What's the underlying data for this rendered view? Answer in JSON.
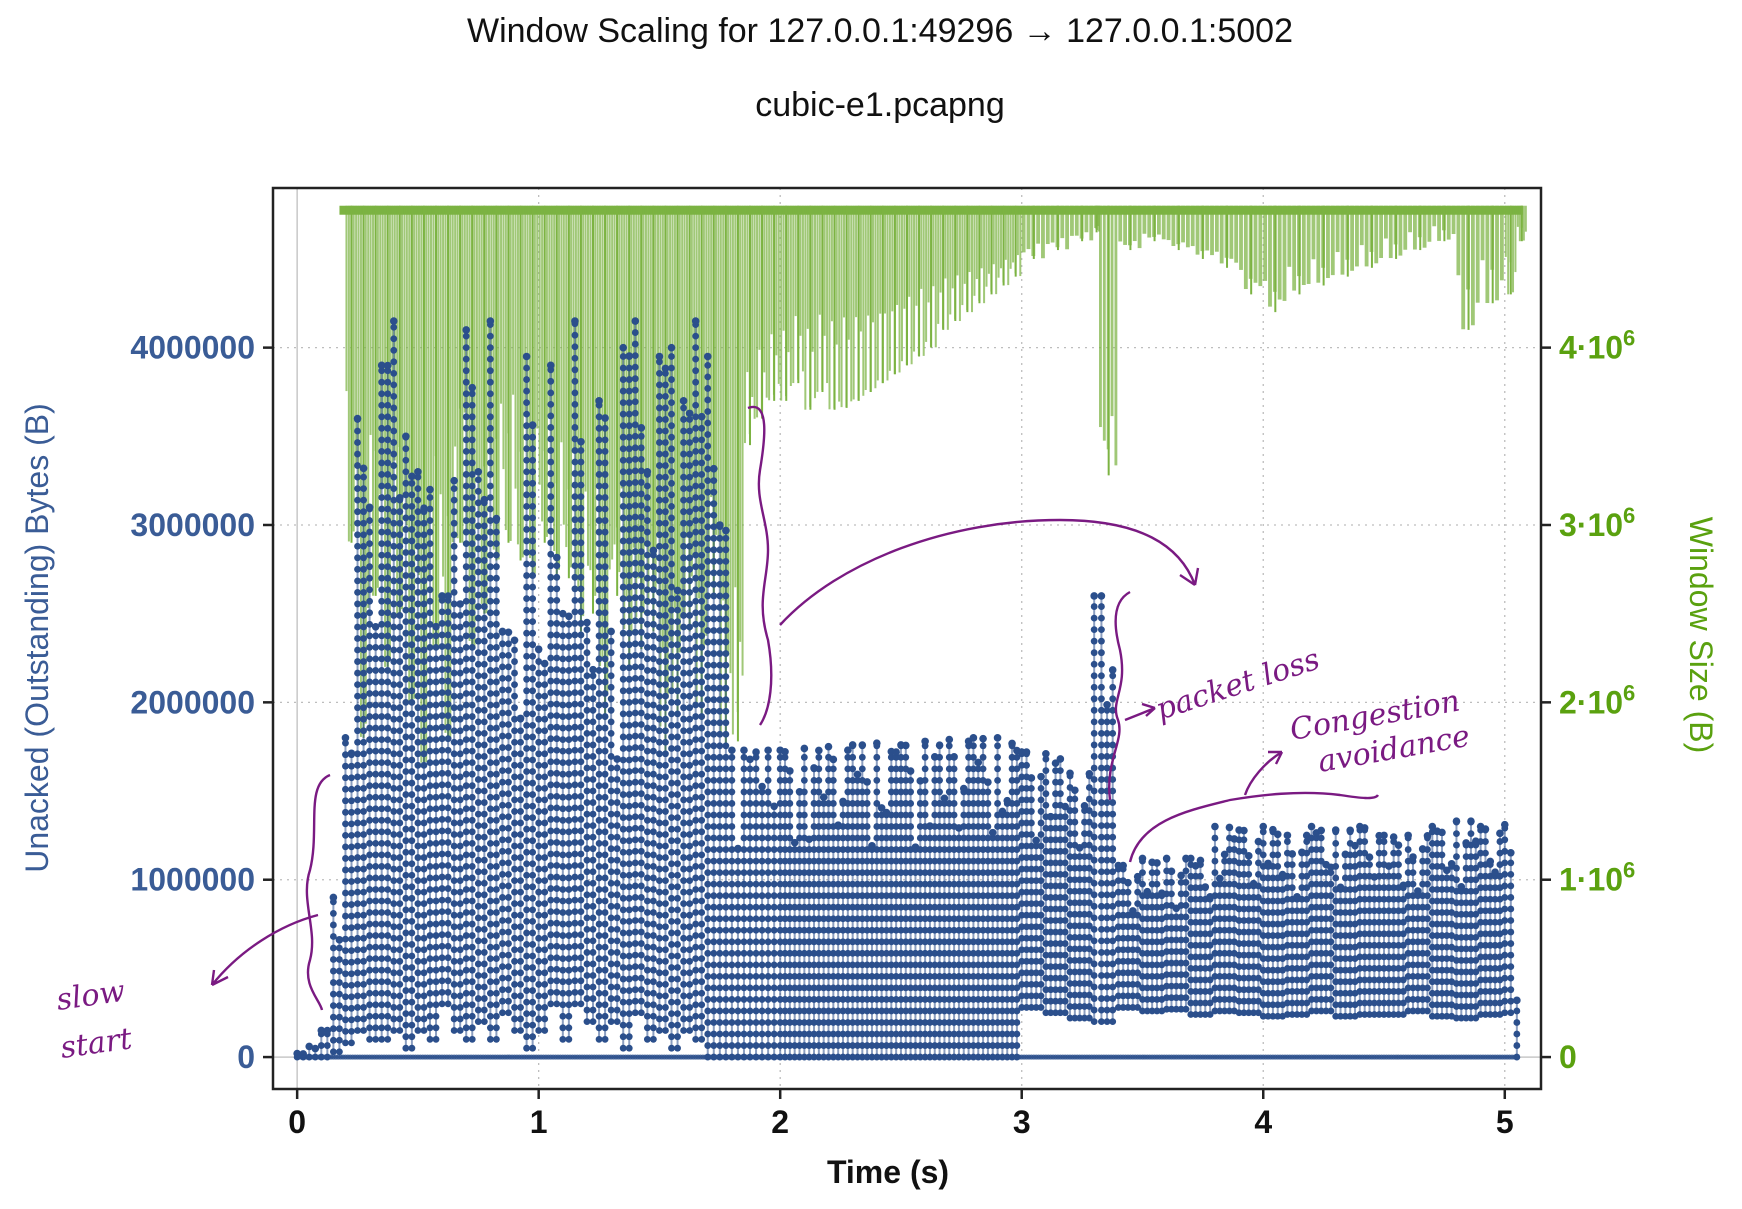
{
  "colors": {
    "unacked": "#2b4f8c",
    "window": "#7cb342",
    "annotation": "#7a1a82",
    "axis_left": "#3a5c96",
    "axis_right": "#5aa10f"
  },
  "chart_data": {
    "type": "scatter",
    "title": "Window Scaling for 127.0.0.1:49296 → 127.0.0.1:5002",
    "subtitle": "cubic-e1.pcapng",
    "xlabel": "Time (s)",
    "ylabel_left": "Unacked (Outstanding) Bytes (B)",
    "ylabel_right": "Window Size (B)",
    "xlim": [
      -0.1,
      5.15
    ],
    "ylim": [
      -180000,
      4900000
    ],
    "grid": true,
    "x_ticks": [
      "0",
      "1",
      "2",
      "3",
      "4",
      "5"
    ],
    "y_left_ticks": [
      "0",
      "1000000",
      "2000000",
      "3000000",
      "4000000"
    ],
    "y_right_ticks": [
      {
        "base": "0",
        "exp": ""
      },
      {
        "base": "1·10",
        "exp": "6"
      },
      {
        "base": "2·10",
        "exp": "6"
      },
      {
        "base": "3·10",
        "exp": "6"
      },
      {
        "base": "4·10",
        "exp": "6"
      }
    ],
    "series": [
      {
        "name": "Window Size (B)",
        "style": "bars",
        "axis": "right",
        "ceiling": 4800000,
        "x": [
          0.2,
          0.25,
          0.3,
          0.35,
          0.4,
          0.45,
          0.5,
          0.55,
          0.6,
          0.65,
          0.7,
          0.75,
          0.8,
          0.85,
          0.9,
          0.95,
          1.0,
          1.05,
          1.1,
          1.15,
          1.2,
          1.25,
          1.3,
          1.35,
          1.4,
          1.45,
          1.5,
          1.55,
          1.6,
          1.65,
          1.7,
          1.75,
          1.8,
          1.85,
          1.9,
          1.95,
          2.0,
          2.05,
          2.1,
          2.15,
          2.2,
          2.25,
          2.3,
          2.35,
          2.4,
          2.45,
          2.5,
          2.55,
          2.6,
          2.65,
          2.7,
          2.75,
          2.8,
          2.85,
          2.9,
          2.95,
          3.0,
          3.1,
          3.2,
          3.3,
          3.32,
          3.4,
          3.5,
          3.6,
          3.7,
          3.8,
          3.9,
          4.0,
          4.1,
          4.2,
          4.3,
          4.4,
          4.5,
          4.6,
          4.7,
          4.8,
          4.9,
          5.0,
          5.05
        ],
        "minimum": [
          2900000,
          1800000,
          2600000,
          2200000,
          2500000,
          2000000,
          1650000,
          2300000,
          1800000,
          2900000,
          2300000,
          2500000,
          2800000,
          2900000,
          2800000,
          2700000,
          2900000,
          2700000,
          2700000,
          2400000,
          2500000,
          1900000,
          2600000,
          2200000,
          2300000,
          2400000,
          1700000,
          1950000,
          2400000,
          1900000,
          2600000,
          1750000,
          1780000,
          3450000,
          3600000,
          3700000,
          3700000,
          3800000,
          3650000,
          3750000,
          3650000,
          3660000,
          3700000,
          3750000,
          3800000,
          3850000,
          3900000,
          3950000,
          4000000,
          4100000,
          4150000,
          4200000,
          4250000,
          4300000,
          4350000,
          4400000,
          4500000,
          4550000,
          4600000,
          4650000,
          3280000,
          4550000,
          4600000,
          4550000,
          4500000,
          4450000,
          4300000,
          4200000,
          4300000,
          4350000,
          4400000,
          4450000,
          4500000,
          4550000,
          4600000,
          4100000,
          4250000,
          4300000,
          4600000
        ]
      },
      {
        "name": "Unacked (Outstanding) Bytes (B)",
        "style": "dots",
        "axis": "left",
        "x": [
          0.0,
          0.05,
          0.1,
          0.15,
          0.2,
          0.25,
          0.3,
          0.35,
          0.4,
          0.45,
          0.5,
          0.55,
          0.6,
          0.65,
          0.7,
          0.75,
          0.8,
          0.85,
          0.9,
          0.95,
          1.0,
          1.05,
          1.1,
          1.15,
          1.2,
          1.25,
          1.3,
          1.35,
          1.4,
          1.45,
          1.5,
          1.55,
          1.6,
          1.65,
          1.7,
          1.75,
          1.8,
          1.85,
          1.9,
          1.95,
          2.0,
          2.1,
          2.2,
          2.3,
          2.4,
          2.5,
          2.6,
          2.7,
          2.8,
          2.9,
          3.0,
          3.1,
          3.2,
          3.3,
          3.33,
          3.4,
          3.5,
          3.6,
          3.7,
          3.8,
          3.9,
          4.0,
          4.1,
          4.2,
          4.3,
          4.4,
          4.5,
          4.6,
          4.7,
          4.8,
          4.9,
          5.0,
          5.05
        ],
        "max": [
          20000,
          60000,
          150000,
          900000,
          1800000,
          3600000,
          3100000,
          3900000,
          4150000,
          3500000,
          3300000,
          3200000,
          2600000,
          3250000,
          4100000,
          3300000,
          4150000,
          2400000,
          2350000,
          3950000,
          2300000,
          3900000,
          2500000,
          4150000,
          2450000,
          3700000,
          2400000,
          4000000,
          4150000,
          3300000,
          3950000,
          4000000,
          3700000,
          4150000,
          3950000,
          3000000,
          1730000,
          1730000,
          1720000,
          1730000,
          1730000,
          1740000,
          1750000,
          1760000,
          1770000,
          1760000,
          1780000,
          1790000,
          1800000,
          1800000,
          1720000,
          1710000,
          1600000,
          2600000,
          2600000,
          1080000,
          1120000,
          1120000,
          1120000,
          1300000,
          1280000,
          1300000,
          1250000,
          1300000,
          1280000,
          1300000,
          1250000,
          1250000,
          1300000,
          1330000,
          1300000,
          1310000,
          320000
        ],
        "min": [
          0,
          0,
          0,
          30000,
          80000,
          150000,
          100000,
          100000,
          150000,
          50000,
          150000,
          100000,
          300000,
          150000,
          100000,
          200000,
          100000,
          250000,
          150000,
          50000,
          150000,
          300000,
          100000,
          300000,
          200000,
          100000,
          200000,
          50000,
          250000,
          100000,
          150000,
          50000,
          150000,
          100000,
          0,
          0,
          0,
          0,
          0,
          0,
          0,
          0,
          0,
          0,
          0,
          0,
          0,
          0,
          0,
          0,
          280000,
          250000,
          220000,
          200000,
          200000,
          280000,
          260000,
          270000,
          240000,
          260000,
          250000,
          230000,
          240000,
          260000,
          230000,
          240000,
          240000,
          260000,
          230000,
          220000,
          240000,
          250000,
          0
        ]
      }
    ],
    "annotations": [
      {
        "text_lines": [
          "slow",
          "start"
        ]
      },
      {
        "text_lines": [
          "packet loss"
        ]
      },
      {
        "text_lines": [
          "Congestion",
          "avoidance"
        ]
      }
    ]
  }
}
